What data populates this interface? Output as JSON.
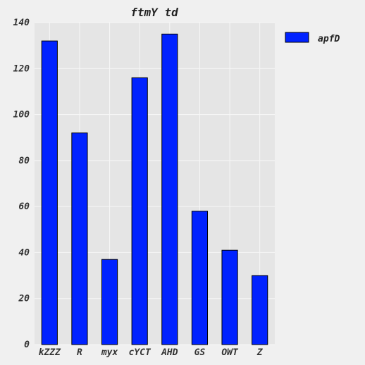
{
  "chart_data": {
    "type": "bar",
    "title": "ftmY  td",
    "xlabel": "",
    "ylabel": "",
    "categories": [
      "kZZZ",
      "R",
      "myx",
      "cYCT",
      "AHD",
      "GS",
      "OWT",
      "Z"
    ],
    "series": [
      {
        "name": "apfD",
        "values": [
          132,
          92,
          37,
          116,
          135,
          58,
          41,
          30
        ]
      }
    ],
    "ylim": [
      0,
      140
    ],
    "yticks": [
      0,
      20,
      40,
      60,
      80,
      100,
      120,
      140
    ],
    "grid": true,
    "legend_position": "top-right, outside plot",
    "colors": {
      "bar_fill": "#0022ff",
      "bar_edge": "#000000",
      "plot_background": "#e5e5e5",
      "figure_background": "#f0f0f0",
      "grid": "#f7f7f7"
    }
  }
}
